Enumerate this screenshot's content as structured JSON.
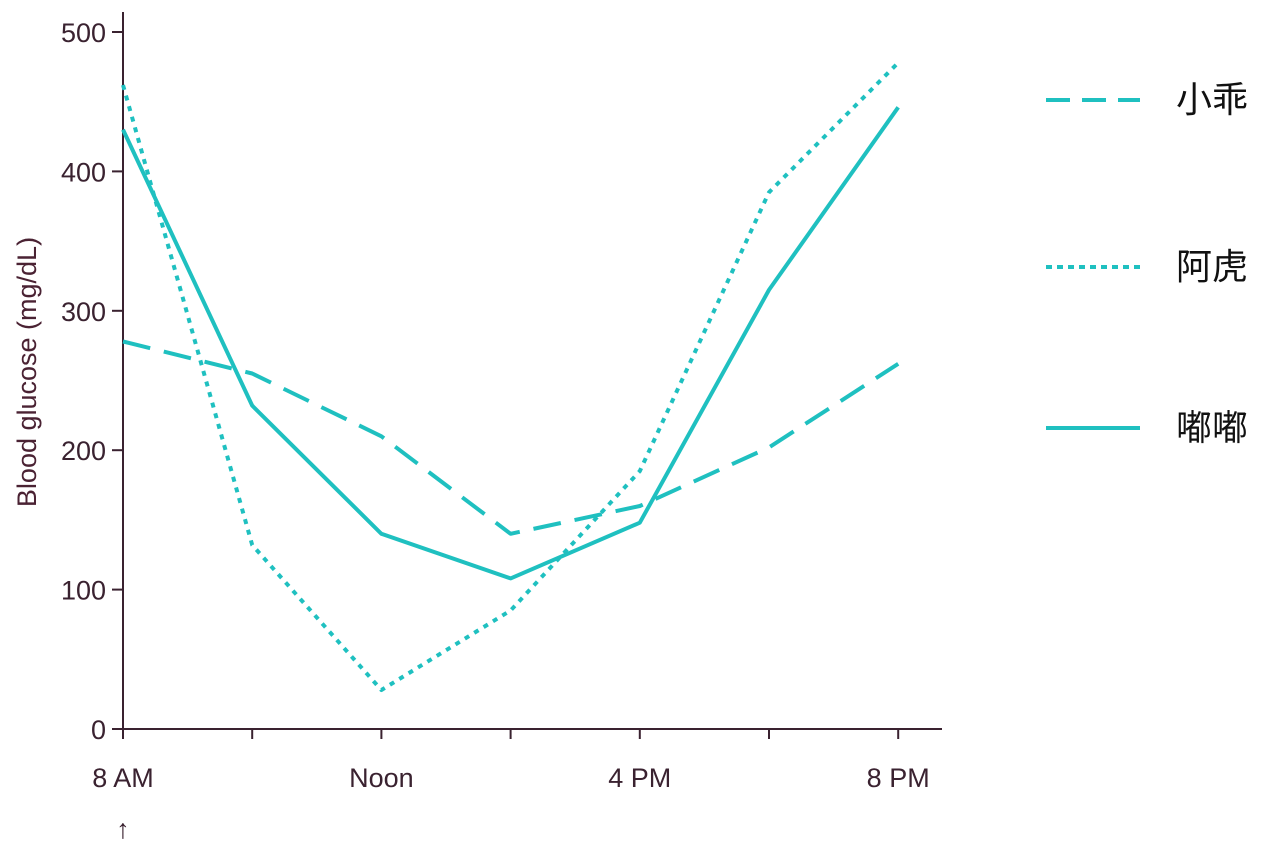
{
  "chart_data": {
    "type": "line",
    "ylabel": "Blood glucose (mg/dL)",
    "xlabel": "",
    "ylim": [
      0,
      500
    ],
    "y_ticks": [
      0,
      100,
      200,
      300,
      400,
      500
    ],
    "x_tick_positions": [
      "8 AM",
      "10 AM",
      "Noon",
      "2 PM",
      "4 PM",
      "6 PM",
      "8 PM"
    ],
    "x_tick_labels": [
      {
        "at": "8 AM",
        "label": "8 AM"
      },
      {
        "at": "Noon",
        "label": "Noon"
      },
      {
        "at": "4 PM",
        "label": "4 PM"
      },
      {
        "at": "8 PM",
        "label": "8 PM"
      }
    ],
    "x_marker": {
      "at": "8 AM",
      "symbol": "↑"
    },
    "grid": false,
    "legend_position": "right",
    "series": [
      {
        "name": "小乖",
        "style": "dashed",
        "color": "#1fc0c0",
        "values": [
          278,
          255,
          210,
          140,
          160,
          202,
          262
        ]
      },
      {
        "name": "阿虎",
        "style": "dotted",
        "color": "#1fc0c0",
        "values": [
          462,
          132,
          28,
          85,
          185,
          385,
          478
        ]
      },
      {
        "name": "嘟嘟",
        "style": "solid",
        "color": "#1fc0c0",
        "values": [
          430,
          232,
          140,
          108,
          148,
          315,
          446
        ]
      }
    ]
  }
}
